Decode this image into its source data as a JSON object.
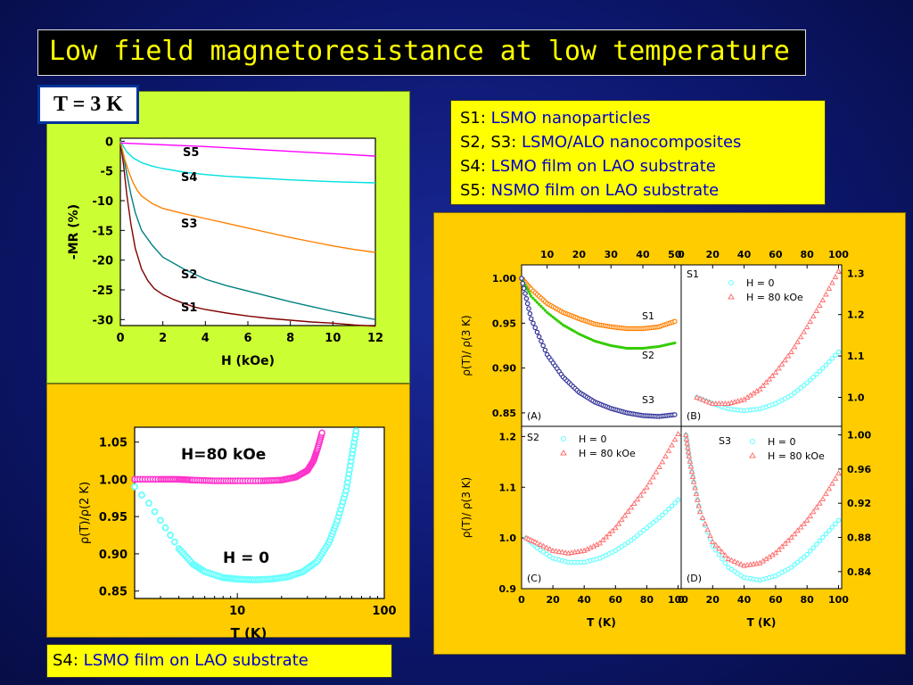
{
  "title": "Low field magnetoresistance at low temperature",
  "temp_label": "T = 3 K",
  "legend": [
    {
      "key": "S1:",
      "text": " LSMO nanoparticles"
    },
    {
      "key": "S2, S3:",
      "text": " LSMO/ALO nanocomposites"
    },
    {
      "key": "S4:",
      "text": " LSMO film on LAO substrate"
    },
    {
      "key": "S5:",
      "text": " NSMO film on LAO substrate"
    }
  ],
  "bottom_label": {
    "key": "S4:",
    "text": " LSMO film on LAO substrate"
  },
  "colors": {
    "S1": "#800000",
    "S2": "#008080",
    "S3": "#ff8000",
    "S4": "#00e0e0",
    "S5": "#ff00ff",
    "magenta": "#ff33cc",
    "cyan": "#66ffff",
    "green": "#33cc00"
  },
  "chart_data": [
    {
      "type": "line",
      "xlabel": "H (kOe)",
      "ylabel": "-MR (%)",
      "xlim": [
        0,
        12
      ],
      "ylim": [
        -31,
        0.5
      ],
      "xticks": [
        "0",
        "2",
        "4",
        "6",
        "8",
        "10",
        "12"
      ],
      "yticks": [
        "0",
        "-5",
        "-10",
        "-15",
        "-20",
        "-25",
        "-30"
      ],
      "series": [
        {
          "name": "S1",
          "x": [
            0,
            0.15,
            0.3,
            0.5,
            0.7,
            1,
            1.3,
            1.6,
            2,
            2.5,
            3,
            3.5,
            4,
            5,
            6,
            7,
            8,
            9,
            10,
            11,
            12
          ],
          "y": [
            0,
            -4,
            -9,
            -14,
            -18,
            -21.5,
            -23.5,
            -24.8,
            -25.8,
            -26.6,
            -27.3,
            -27.9,
            -28.3,
            -28.9,
            -29.4,
            -29.8,
            -30.1,
            -30.4,
            -30.6,
            -30.9,
            -31.1
          ]
        },
        {
          "name": "S2",
          "x": [
            0,
            0.15,
            0.3,
            0.5,
            0.7,
            1,
            1.5,
            2,
            3,
            4,
            5,
            6,
            7,
            8,
            9,
            10,
            11,
            12
          ],
          "y": [
            0,
            -2.5,
            -5.5,
            -9,
            -12,
            -15,
            -17.5,
            -19.5,
            -21.5,
            -23.2,
            -24.3,
            -25.2,
            -26.1,
            -27,
            -27.8,
            -28.6,
            -29.3,
            -30
          ]
        },
        {
          "name": "S3",
          "x": [
            0,
            0.2,
            0.4,
            0.6,
            0.8,
            1,
            1.5,
            2,
            3,
            4,
            5,
            6,
            7,
            8,
            9,
            10,
            11,
            12
          ],
          "y": [
            0,
            -3,
            -5.2,
            -7,
            -8.3,
            -9.2,
            -10.5,
            -11.3,
            -12.2,
            -13,
            -13.8,
            -14.6,
            -15.4,
            -16.2,
            -16.9,
            -17.6,
            -18.2,
            -18.7
          ]
        },
        {
          "name": "S4",
          "x": [
            0,
            0.3,
            0.6,
            1,
            1.5,
            2,
            3,
            4,
            5,
            6,
            8,
            10,
            12
          ],
          "y": [
            0,
            -1.8,
            -2.8,
            -3.6,
            -4.2,
            -4.6,
            -5.2,
            -5.6,
            -5.9,
            -6.1,
            -6.5,
            -6.8,
            -7.0
          ]
        },
        {
          "name": "S5",
          "x": [
            0,
            2,
            4,
            6,
            8,
            10,
            12
          ],
          "y": [
            -0.3,
            -0.6,
            -0.9,
            -1.3,
            -1.7,
            -2.1,
            -2.5
          ]
        }
      ],
      "annotations": [
        "S5",
        "S4",
        "S3",
        "S2",
        "S1"
      ]
    },
    {
      "type": "scatter",
      "xlabel": "T (K)",
      "ylabel": "ρ(T)/ρ(2 K)",
      "xscale": "log",
      "xlim": [
        2,
        100
      ],
      "ylim": [
        0.84,
        1.07
      ],
      "xticks": [
        "10",
        "100"
      ],
      "yticks": [
        "1.05",
        "1.00",
        "0.95",
        "0.90",
        "0.85"
      ],
      "series": [
        {
          "name": "H=80 kOe",
          "x": [
            2,
            3,
            4,
            5,
            7,
            10,
            15,
            20,
            25,
            30,
            33,
            35,
            38
          ],
          "y": [
            1.0,
            1.0,
            1.0,
            0.999,
            0.998,
            0.998,
            0.998,
            0.999,
            1.003,
            1.012,
            1.025,
            1.04,
            1.065
          ]
        },
        {
          "name": "H = 0",
          "x": [
            2,
            2.5,
            3,
            3.5,
            4,
            5,
            6,
            8,
            10,
            13,
            17,
            22,
            28,
            35,
            42,
            48,
            55,
            60,
            65
          ],
          "y": [
            0.99,
            0.968,
            0.945,
            0.925,
            0.907,
            0.886,
            0.876,
            0.868,
            0.866,
            0.865,
            0.866,
            0.869,
            0.876,
            0.89,
            0.915,
            0.945,
            0.985,
            1.03,
            1.07
          ]
        }
      ],
      "annotations": [
        "H=80 kOe",
        "H = 0"
      ]
    },
    {
      "type": "scatter",
      "panel": "(A)",
      "x_top_ticks": [
        "10",
        "20",
        "30",
        "40",
        "50"
      ],
      "xlim": [
        2,
        52
      ],
      "ylim": [
        0.835,
        1.015
      ],
      "yticks": [
        "1.00",
        "0.95",
        "0.90",
        "0.85"
      ],
      "ylabel": "ρ(T)/ ρ(3 K)",
      "series": [
        {
          "name": "S1",
          "x": [
            2,
            5,
            10,
            15,
            20,
            25,
            30,
            35,
            40,
            45,
            50
          ],
          "y": [
            1.0,
            0.988,
            0.972,
            0.962,
            0.955,
            0.949,
            0.946,
            0.944,
            0.944,
            0.946,
            0.952
          ]
        },
        {
          "name": "S2",
          "x": [
            2,
            5,
            10,
            15,
            20,
            25,
            30,
            35,
            40,
            45,
            50
          ],
          "y": [
            1.0,
            0.98,
            0.962,
            0.948,
            0.938,
            0.93,
            0.925,
            0.922,
            0.922,
            0.924,
            0.928
          ]
        },
        {
          "name": "S3",
          "x": [
            2,
            5,
            10,
            15,
            20,
            25,
            30,
            35,
            40,
            45,
            50
          ],
          "y": [
            1.0,
            0.955,
            0.915,
            0.89,
            0.873,
            0.862,
            0.855,
            0.85,
            0.847,
            0.846,
            0.848
          ]
        }
      ],
      "annotations": [
        "S1",
        "S2",
        "S3"
      ]
    },
    {
      "type": "scatter",
      "panel": "(B)",
      "label": "S1",
      "x_top_ticks": [
        "0",
        "20",
        "40",
        "60",
        "80",
        "100"
      ],
      "xlim": [
        0,
        102
      ],
      "ylim": [
        0.93,
        1.32
      ],
      "yticks_right": [
        "1.3",
        "1.2",
        "1.1",
        "1.0"
      ],
      "series": [
        {
          "name": "H = 0",
          "x": [
            10,
            20,
            30,
            40,
            50,
            60,
            70,
            80,
            90,
            100
          ],
          "y": [
            1.0,
            0.985,
            0.972,
            0.968,
            0.972,
            0.985,
            1.005,
            1.035,
            1.07,
            1.11
          ]
        },
        {
          "name": "H = 80 kOe",
          "x": [
            10,
            20,
            30,
            40,
            50,
            60,
            70,
            80,
            90,
            100
          ],
          "y": [
            1.0,
            0.985,
            0.985,
            0.995,
            1.02,
            1.06,
            1.11,
            1.17,
            1.235,
            1.305
          ]
        }
      ]
    },
    {
      "type": "scatter",
      "panel": "(C)",
      "label": "S2",
      "xlabel": "T (K)",
      "ylabel": "ρ(T)/ ρ(3 K)",
      "xticks": [
        "0",
        "20",
        "40",
        "60",
        "80",
        "100"
      ],
      "xlim": [
        0,
        102
      ],
      "ylim": [
        0.9,
        1.22
      ],
      "yticks": [
        "1.2",
        "1.1",
        "1.0",
        "0.9"
      ],
      "series": [
        {
          "name": "H = 0",
          "x": [
            3,
            10,
            20,
            30,
            40,
            50,
            60,
            70,
            80,
            90,
            100
          ],
          "y": [
            1.0,
            0.98,
            0.96,
            0.952,
            0.952,
            0.96,
            0.975,
            0.995,
            1.02,
            1.045,
            1.075
          ]
        },
        {
          "name": "H = 80 kOe",
          "x": [
            3,
            10,
            20,
            30,
            40,
            50,
            60,
            70,
            80,
            90,
            100
          ],
          "y": [
            1.0,
            0.99,
            0.975,
            0.97,
            0.975,
            0.99,
            1.02,
            1.06,
            1.1,
            1.15,
            1.205
          ]
        }
      ]
    },
    {
      "type": "scatter",
      "panel": "(D)",
      "label": "S3",
      "xlabel": "T (K)",
      "xticks": [
        "0",
        "20",
        "40",
        "60",
        "80",
        "100"
      ],
      "xlim": [
        0,
        102
      ],
      "ylim": [
        0.82,
        1.01
      ],
      "yticks_right": [
        "1.00",
        "0.96",
        "0.92",
        "0.88",
        "0.84"
      ],
      "series": [
        {
          "name": "H = 0",
          "x": [
            3,
            5,
            8,
            12,
            20,
            30,
            40,
            50,
            60,
            70,
            80,
            90,
            100
          ],
          "y": [
            1.0,
            0.975,
            0.945,
            0.91,
            0.87,
            0.845,
            0.833,
            0.83,
            0.835,
            0.845,
            0.86,
            0.88,
            0.9
          ]
        },
        {
          "name": "H = 80 kOe",
          "x": [
            3,
            5,
            8,
            12,
            20,
            30,
            40,
            50,
            60,
            70,
            80,
            90,
            100
          ],
          "y": [
            1.0,
            0.975,
            0.945,
            0.91,
            0.875,
            0.855,
            0.847,
            0.85,
            0.862,
            0.88,
            0.9,
            0.925,
            0.955
          ]
        }
      ]
    }
  ]
}
